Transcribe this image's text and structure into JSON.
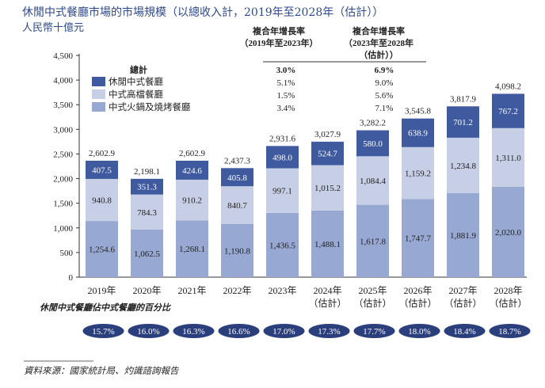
{
  "chart_data": {
    "type": "bar",
    "stacked": true,
    "title": "休閒中式餐廳市場的市場規模（以總收入計，2019年至2028年（估計））",
    "ylabel": "人民幣十億元",
    "ylim": [
      0,
      4500
    ],
    "yticks": [
      "0",
      "500",
      "1,000",
      "1,500",
      "2,000",
      "2,500",
      "3,000",
      "3,500",
      "4,000",
      "4,500"
    ],
    "ytick_values": [
      0,
      500,
      1000,
      1500,
      2000,
      2500,
      3000,
      3500,
      4000,
      4500
    ],
    "categories": [
      "2019年",
      "2020年",
      "2021年",
      "2022年",
      "2023年",
      "2024年",
      "2025年",
      "2026年",
      "2027年",
      "2028年"
    ],
    "category_sublabels": [
      "",
      "",
      "",
      "",
      "",
      "（估計）",
      "（估計）",
      "（估計）",
      "（估計）",
      "（估計）"
    ],
    "series": [
      {
        "name": "中式火鍋及燒烤餐廳",
        "color": "#97a8d3",
        "values": [
          1254.6,
          1062.5,
          1268.1,
          1190.8,
          1436.5,
          1488.1,
          1617.8,
          1747.7,
          1881.9,
          2020.0
        ],
        "labels": [
          "1,254.6",
          "1,062.5",
          "1,268.1",
          "1,190.8",
          "1,436.5",
          "1,488.1",
          "1,617.8",
          "1,747.7",
          "1,881.9",
          "2,020.0"
        ]
      },
      {
        "name": "中式高檔餐廳",
        "color": "#c6cfe6",
        "values": [
          940.8,
          784.3,
          910.2,
          840.7,
          997.1,
          1015.2,
          1084.4,
          1159.2,
          1234.8,
          1311.0
        ],
        "labels": [
          "940.8",
          "784.3",
          "910.2",
          "840.7",
          "997.1",
          "1,015.2",
          "1,084.4",
          "1,159.2",
          "1,234.8",
          "1,311.0"
        ]
      },
      {
        "name": "休閒中式餐廳",
        "color": "#3f5a9e",
        "values": [
          407.5,
          351.3,
          424.6,
          405.8,
          498.0,
          524.7,
          580.0,
          638.9,
          701.2,
          767.2
        ],
        "labels": [
          "407.5",
          "351.3",
          "424.6",
          "405.8",
          "498.0",
          "524.7",
          "580.0",
          "638.9",
          "701.2",
          "767.2"
        ]
      }
    ],
    "totals": [
      "2,602.9",
      "2,198.1",
      "2,602.9",
      "2,437.3",
      "2,931.6",
      "3,027.9",
      "3,282.2",
      "3,545.8",
      "3,817.9",
      "4,098.2"
    ],
    "legend": {
      "position": "top-left",
      "header": "總計",
      "items": [
        "休閒中式餐廳",
        "中式高檔餐廳",
        "中式火鍋及燒烤餐廳"
      ]
    },
    "cagr_table": {
      "headers": [
        [
          "複合年增長率",
          "（2019年至2023年）"
        ],
        [
          "複合年增長率",
          "（2023年至2028年",
          "（估計））"
        ]
      ],
      "rows": [
        [
          "3.0%",
          "6.9%"
        ],
        [
          "5.1%",
          "9.0%"
        ],
        [
          "1.5%",
          "5.6%"
        ],
        [
          "3.4%",
          "7.1%"
        ]
      ]
    },
    "share_label": "休閒中式餐廳佔中式餐廳的百分比",
    "share_values": [
      "15.7%",
      "16.0%",
      "16.3%",
      "16.6%",
      "17.0%",
      "17.3%",
      "17.7%",
      "18.0%",
      "18.4%",
      "18.7%"
    ],
    "share_color": "#2b3f7c",
    "source": "資料來源：國家統計局、灼識諮詢報告"
  }
}
